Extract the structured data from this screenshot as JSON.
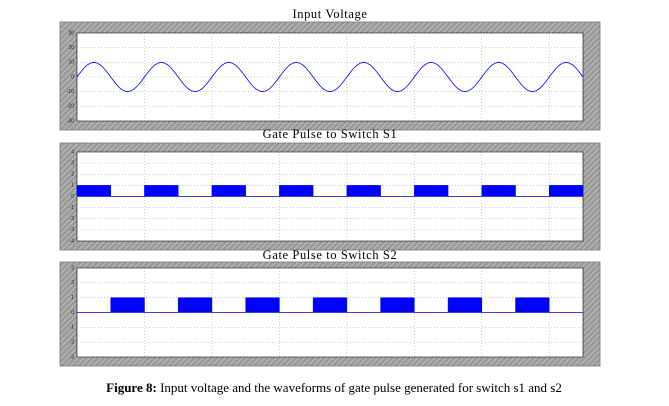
{
  "chart_data": [
    {
      "type": "line",
      "title": "Input Voltage",
      "color": "#0000ff",
      "x": [
        0,
        0.001,
        0.002,
        0.003,
        0.004,
        0.005,
        0.006,
        0.007,
        0.008,
        0.009,
        0.01,
        0.011,
        0.012,
        0.013,
        0.014,
        0.015,
        0.016,
        0.017,
        0.018,
        0.019,
        0.02,
        0.021,
        0.022,
        0.023,
        0.024,
        0.025,
        0.026,
        0.027,
        0.028,
        0.029,
        0.03,
        0.031,
        0.032,
        0.033,
        0.034,
        0.035,
        0.036,
        0.037,
        0.038,
        0.039,
        0.04,
        0.041,
        0.042,
        0.043,
        0.044,
        0.045,
        0.046,
        0.047,
        0.048,
        0.049,
        0.05,
        0.051,
        0.052,
        0.053,
        0.054,
        0.055,
        0.056,
        0.057,
        0.058,
        0.059,
        0.06,
        0.061,
        0.062,
        0.063,
        0.064,
        0.065,
        0.066,
        0.067,
        0.068,
        0.069,
        0.07,
        0.071,
        0.072,
        0.073,
        0.074,
        0.075,
        0.076,
        0.077,
        0.078,
        0.079,
        0.08,
        0.081,
        0.082,
        0.083,
        0.084,
        0.085,
        0.086,
        0.087,
        0.088,
        0.089,
        0.09,
        0.091,
        0.092,
        0.093,
        0.094,
        0.095,
        0.096,
        0.097,
        0.098,
        0.099,
        0.1,
        0.101,
        0.102,
        0.103,
        0.104,
        0.105,
        0.106,
        0.107,
        0.108,
        0.109,
        0.11,
        0.111,
        0.112,
        0.113,
        0.114,
        0.115,
        0.116,
        0.117,
        0.118,
        0.119,
        0.12,
        0.121,
        0.122,
        0.123,
        0.124,
        0.125,
        0.126,
        0.127,
        0.128,
        0.129,
        0.13,
        0.131,
        0.132,
        0.133,
        0.134,
        0.135,
        0.136,
        0.137,
        0.138,
        0.139,
        0.14,
        0.141,
        0.142,
        0.143,
        0.144,
        0.145,
        0.146,
        0.147,
        0.148,
        0.149,
        0.15
      ],
      "values": [
        0,
        3.1,
        5.9,
        8.1,
        9.5,
        10,
        9.5,
        8.1,
        5.9,
        3.1,
        0,
        -3.1,
        -5.9,
        -8.1,
        -9.5,
        -10,
        -9.5,
        -8.1,
        -5.9,
        -3.1,
        0,
        3.1,
        5.9,
        8.1,
        9.5,
        10,
        9.5,
        8.1,
        5.9,
        3.1,
        0,
        -3.1,
        -5.9,
        -8.1,
        -9.5,
        -10,
        -9.5,
        -8.1,
        -5.9,
        -3.1,
        0,
        3.1,
        5.9,
        8.1,
        9.5,
        10,
        9.5,
        8.1,
        5.9,
        3.1,
        0,
        -3.1,
        -5.9,
        -8.1,
        -9.5,
        -10,
        -9.5,
        -8.1,
        -5.9,
        -3.1,
        0,
        3.1,
        5.9,
        8.1,
        9.5,
        10,
        9.5,
        8.1,
        5.9,
        3.1,
        0,
        -3.1,
        -5.9,
        -8.1,
        -9.5,
        -10,
        -9.5,
        -8.1,
        -5.9,
        -3.1,
        0,
        3.1,
        5.9,
        8.1,
        9.5,
        10,
        9.5,
        8.1,
        5.9,
        3.1,
        0,
        -3.1,
        -5.9,
        -8.1,
        -9.5,
        -10,
        -9.5,
        -8.1,
        -5.9,
        -3.1,
        0,
        3.1,
        5.9,
        8.1,
        9.5,
        10,
        9.5,
        8.1,
        5.9,
        3.1,
        0,
        -3.1,
        -5.9,
        -8.1,
        -9.5,
        -10,
        -9.5,
        -8.1,
        -5.9,
        -3.1,
        0,
        3.1,
        5.9,
        8.1,
        9.5,
        10,
        9.5,
        8.1,
        5.9,
        3.1,
        0,
        -3.1,
        -5.9,
        -8.1,
        -9.5,
        -10,
        -9.5,
        -8.1,
        -5.9,
        -3.1,
        0,
        3.1,
        5.9,
        8.1,
        9.5,
        10,
        9.5,
        8.1,
        5.9,
        3.1,
        0
      ],
      "xlim": [
        0,
        0.15
      ],
      "xticks": [
        0.02,
        0.04,
        0.06,
        0.08,
        0.1,
        0.12,
        0.14
      ],
      "ylim": [
        -30,
        30
      ],
      "yticks": [
        -30,
        -20,
        -10,
        0,
        10,
        20,
        30
      ],
      "grid": true
    },
    {
      "type": "area",
      "title": "Gate Pulse to Switch S1",
      "color": "#0000ff",
      "x": [
        0,
        0,
        0.01,
        0.01,
        0.02,
        0.02,
        0.03,
        0.03,
        0.04,
        0.04,
        0.05,
        0.05,
        0.06,
        0.06,
        0.07,
        0.07,
        0.08,
        0.08,
        0.09,
        0.09,
        0.1,
        0.1,
        0.11,
        0.11,
        0.12,
        0.12,
        0.13,
        0.13,
        0.14,
        0.14,
        0.15,
        0.15
      ],
      "values": [
        0,
        1,
        1,
        0,
        0,
        1,
        1,
        0,
        0,
        1,
        1,
        0,
        0,
        1,
        1,
        0,
        0,
        1,
        1,
        0,
        0,
        1,
        1,
        0,
        0,
        1,
        1,
        0,
        0,
        1,
        1,
        0
      ],
      "xlim": [
        0,
        0.15
      ],
      "xticks": [
        0.02,
        0.04,
        0.06,
        0.08,
        0.1,
        0.12,
        0.14
      ],
      "ylim": [
        -4,
        4
      ],
      "yticks": [
        -4,
        -3,
        -2,
        -1,
        0,
        1,
        2,
        3,
        4
      ],
      "grid": true
    },
    {
      "type": "area",
      "title": "Gate Pulse to Switch S2",
      "color": "#0000ff",
      "x": [
        0,
        0.01,
        0.01,
        0.02,
        0.02,
        0.03,
        0.03,
        0.04,
        0.04,
        0.05,
        0.05,
        0.06,
        0.06,
        0.07,
        0.07,
        0.08,
        0.08,
        0.09,
        0.09,
        0.1,
        0.1,
        0.11,
        0.11,
        0.12,
        0.12,
        0.13,
        0.13,
        0.14,
        0.14,
        0.15
      ],
      "values": [
        0,
        0,
        1,
        1,
        0,
        0,
        1,
        1,
        0,
        0,
        1,
        1,
        0,
        0,
        1,
        1,
        0,
        0,
        1,
        1,
        0,
        0,
        1,
        1,
        0,
        0,
        1,
        1,
        0,
        0
      ],
      "xlim": [
        0,
        0.15
      ],
      "xticks": [
        0.02,
        0.04,
        0.06,
        0.08,
        0.1,
        0.12,
        0.14
      ],
      "ylim": [
        -3,
        3
      ],
      "yticks": [
        -3,
        -2,
        -1,
        0,
        1,
        2,
        3
      ],
      "grid": true
    }
  ],
  "caption": {
    "label": "Figure 8:",
    "text": "Input voltage and the waveforms of gate pulse generated for switch s1 and s2"
  }
}
